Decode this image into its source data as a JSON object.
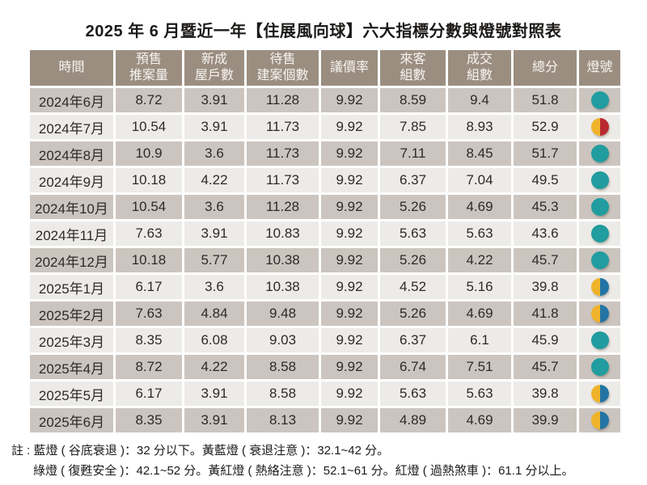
{
  "title": "2025 年 6 月暨近一年【住展風向球】六大指標分數與燈號對照表",
  "table": {
    "headers": [
      "時間",
      "預售\n推案量",
      "新成\n屋戶數",
      "待售\n建案個數",
      "議價率",
      "來客\n組數",
      "成交\n組數",
      "總分",
      "燈號"
    ],
    "rows": [
      {
        "month": "2024年6月",
        "values": [
          "8.72",
          "3.91",
          "11.28",
          "9.92",
          "8.59",
          "9.4",
          "51.8"
        ],
        "light": "green"
      },
      {
        "month": "2024年7月",
        "values": [
          "10.54",
          "3.91",
          "11.73",
          "9.92",
          "7.85",
          "8.93",
          "52.9"
        ],
        "light": "yellow-red"
      },
      {
        "month": "2024年8月",
        "values": [
          "10.9",
          "3.6",
          "11.73",
          "9.92",
          "7.11",
          "8.45",
          "51.7"
        ],
        "light": "green"
      },
      {
        "month": "2024年9月",
        "values": [
          "10.18",
          "4.22",
          "11.73",
          "9.92",
          "6.37",
          "7.04",
          "49.5"
        ],
        "light": "green"
      },
      {
        "month": "2024年10月",
        "values": [
          "10.54",
          "3.6",
          "11.28",
          "9.92",
          "5.26",
          "4.69",
          "45.3"
        ],
        "light": "green"
      },
      {
        "month": "2024年11月",
        "values": [
          "7.63",
          "3.91",
          "10.83",
          "9.92",
          "5.63",
          "5.63",
          "43.6"
        ],
        "light": "green"
      },
      {
        "month": "2024年12月",
        "values": [
          "10.18",
          "5.77",
          "10.38",
          "9.92",
          "5.26",
          "4.22",
          "45.7"
        ],
        "light": "green"
      },
      {
        "month": "2025年1月",
        "values": [
          "6.17",
          "3.6",
          "10.38",
          "9.92",
          "4.52",
          "5.16",
          "39.8"
        ],
        "light": "yellow-blue"
      },
      {
        "month": "2025年2月",
        "values": [
          "7.63",
          "4.84",
          "9.48",
          "9.92",
          "5.26",
          "4.69",
          "41.8"
        ],
        "light": "yellow-blue"
      },
      {
        "month": "2025年3月",
        "values": [
          "8.35",
          "6.08",
          "9.03",
          "9.92",
          "6.37",
          "6.1",
          "45.9"
        ],
        "light": "green"
      },
      {
        "month": "2025年4月",
        "values": [
          "8.72",
          "4.22",
          "8.58",
          "9.92",
          "6.74",
          "7.51",
          "45.7"
        ],
        "light": "green"
      },
      {
        "month": "2025年5月",
        "values": [
          "6.17",
          "3.91",
          "8.58",
          "9.92",
          "5.63",
          "5.63",
          "39.8"
        ],
        "light": "yellow-blue"
      },
      {
        "month": "2025年6月",
        "values": [
          "8.35",
          "3.91",
          "8.13",
          "9.92",
          "4.89",
          "4.69",
          "39.9"
        ],
        "light": "yellow-blue"
      }
    ]
  },
  "lights": {
    "green": {
      "left": "#219c9f",
      "right": "#219c9f",
      "label": "綠燈"
    },
    "yellow-red": {
      "left": "#efb32b",
      "right": "#b8292f",
      "label": "黃紅燈"
    },
    "yellow-blue": {
      "left": "#efb32b",
      "right": "#2274a5",
      "label": "黃藍燈"
    }
  },
  "notes": {
    "prefix": "註 :",
    "line1": "藍燈 ( 谷底衰退 )：32 分以下。黃藍燈 ( 衰退注意 )：32.1~42 分。",
    "line2": "綠燈 ( 復甦安全 )：42.1~52 分。黃紅燈 ( 熱絡注意 )：52.1~61 分。紅燈 ( 過熱煞車 )：61.1 分以上。"
  },
  "colors": {
    "header_bg": "#9b8e81",
    "row_dark": "#ccc5bf",
    "row_light": "#edebe8",
    "light_green": "#219c9f",
    "light_yellow": "#efb32b",
    "light_red": "#b8292f",
    "light_blue": "#2274a5"
  },
  "chart_data": {
    "type": "table",
    "title": "2025 年 6 月暨近一年【住展風向球】六大指標分數與燈號對照表",
    "columns": [
      "時間",
      "預售推案量",
      "新成屋戶數",
      "待售建案個數",
      "議價率",
      "來客組數",
      "成交組數",
      "總分",
      "燈號"
    ],
    "rows": [
      [
        "2024年6月",
        8.72,
        3.91,
        11.28,
        9.92,
        8.59,
        9.4,
        51.8,
        "綠燈"
      ],
      [
        "2024年7月",
        10.54,
        3.91,
        11.73,
        9.92,
        7.85,
        8.93,
        52.9,
        "黃紅燈"
      ],
      [
        "2024年8月",
        10.9,
        3.6,
        11.73,
        9.92,
        7.11,
        8.45,
        51.7,
        "綠燈"
      ],
      [
        "2024年9月",
        10.18,
        4.22,
        11.73,
        9.92,
        6.37,
        7.04,
        49.5,
        "綠燈"
      ],
      [
        "2024年10月",
        10.54,
        3.6,
        11.28,
        9.92,
        5.26,
        4.69,
        45.3,
        "綠燈"
      ],
      [
        "2024年11月",
        7.63,
        3.91,
        10.83,
        9.92,
        5.63,
        5.63,
        43.6,
        "綠燈"
      ],
      [
        "2024年12月",
        10.18,
        5.77,
        10.38,
        9.92,
        5.26,
        4.22,
        45.7,
        "綠燈"
      ],
      [
        "2025年1月",
        6.17,
        3.6,
        10.38,
        9.92,
        4.52,
        5.16,
        39.8,
        "黃藍燈"
      ],
      [
        "2025年2月",
        7.63,
        4.84,
        9.48,
        9.92,
        5.26,
        4.69,
        41.8,
        "黃藍燈"
      ],
      [
        "2025年3月",
        8.35,
        6.08,
        9.03,
        9.92,
        6.37,
        6.1,
        45.9,
        "綠燈"
      ],
      [
        "2025年4月",
        8.72,
        4.22,
        8.58,
        9.92,
        6.74,
        7.51,
        45.7,
        "綠燈"
      ],
      [
        "2025年5月",
        6.17,
        3.91,
        8.58,
        9.92,
        5.63,
        5.63,
        39.8,
        "黃藍燈"
      ],
      [
        "2025年6月",
        8.35,
        3.91,
        8.13,
        9.92,
        4.89,
        4.69,
        39.9,
        "黃藍燈"
      ]
    ]
  }
}
